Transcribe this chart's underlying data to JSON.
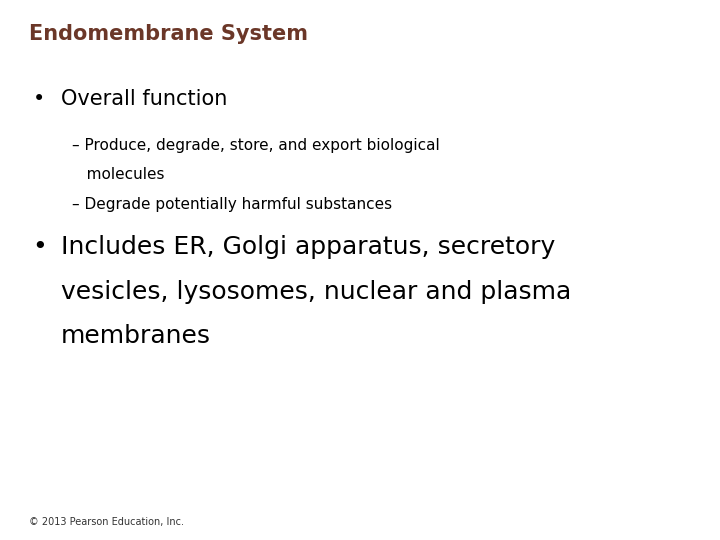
{
  "title": "Endomembrane System",
  "title_color": "#6B3728",
  "title_fontsize": 15,
  "background_color": "#FFFFFF",
  "bullet1_text": "Overall function",
  "bullet1_fontsize": 15,
  "sub1_line1": "– Produce, degrade, store, and export biological",
  "sub1_line2": "   molecules",
  "sub1_line3": "– Degrade potentially harmful substances",
  "sub_fontsize": 11,
  "bullet2_line1": "Includes ER, Golgi apparatus, secretory",
  "bullet2_line2": "vesicles, lysosomes, nuclear and plasma",
  "bullet2_line3": "membranes",
  "bullet2_fontsize": 18,
  "footer": "© 2013 Pearson Education, Inc.",
  "footer_fontsize": 7,
  "text_color": "#000000",
  "bullet_color": "#000000"
}
